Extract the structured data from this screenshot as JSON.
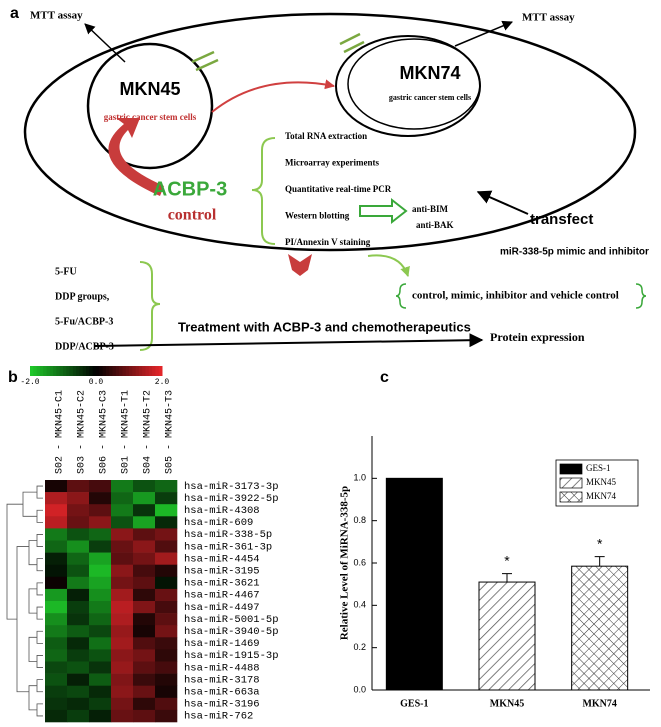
{
  "diagram": {
    "panel_label": "a",
    "mtt_left": "MTT assay",
    "mtt_right": "MTT assay",
    "cell1": "MKN45",
    "cell1_sub": "gastric cancer stem cells",
    "cell2": "MKN74",
    "cell2_sub": "gastric cancer stem cells",
    "agent": "ACBP-3",
    "control": "control",
    "methods": [
      "Total RNA extraction",
      "Microarray experiments",
      "Quantitative real-time PCR",
      "Western blotting",
      "PI/Annexin V staining"
    ],
    "antibodies": [
      "anti-BIM",
      "anti-BAK"
    ],
    "transfect": "transfect",
    "transfect_sub": "miR-338-5p mimic and inhibitor",
    "groups": [
      "5-FU",
      "DDP groups,",
      "5-Fu/ACBP-3",
      "DDP/ACBP-3"
    ],
    "controls": "control, mimic, inhibitor and vehicle control",
    "treatment": "Treatment with ACBP-3 and chemotherapeutics",
    "outcome": "Protein expression"
  },
  "chart_data": [
    {
      "type": "heatmap",
      "panel_label": "b",
      "columns": [
        "S02 - MKN45-C1",
        "S03 - MKN45-C2",
        "S06 - MKN45-C3",
        "S01 - MKN45-T1",
        "S04 - MKN45-T2",
        "S05 - MKN45-T3"
      ],
      "rows": [
        "hsa-miR-3173-3p",
        "hsa-miR-3922-5p",
        "hsa-miR-4308",
        "hsa-miR-609",
        "hsa-miR-338-5p",
        "hsa-miR-361-3p",
        "hsa-miR-4454",
        "hsa-miR-3195",
        "hsa-miR-3621",
        "hsa-miR-4467",
        "hsa-miR-4497",
        "hsa-miR-5001-5p",
        "hsa-miR-3940-5p",
        "hsa-miR-1469",
        "hsa-miR-1915-3p",
        "hsa-miR-4488",
        "hsa-miR-3178",
        "hsa-miR-663a",
        "hsa-miR-3196",
        "hsa-miR-762"
      ],
      "values": [
        [
          0.2,
          0.8,
          0.6,
          -1.2,
          -0.8,
          -1.0
        ],
        [
          1.5,
          1.2,
          0.3,
          -1.0,
          -1.5,
          -0.6
        ],
        [
          1.8,
          1.0,
          0.8,
          -1.2,
          -0.5,
          -1.8
        ],
        [
          1.6,
          0.9,
          1.2,
          -0.8,
          -1.6,
          -0.4
        ],
        [
          -1.2,
          -0.8,
          -1.0,
          1.2,
          0.8,
          1.0
        ],
        [
          -1.0,
          -1.4,
          -0.6,
          0.9,
          1.2,
          0.7
        ],
        [
          -0.3,
          -1.0,
          -1.6,
          0.8,
          1.0,
          1.4
        ],
        [
          -0.2,
          -0.8,
          -1.8,
          1.2,
          0.6,
          0.3
        ],
        [
          0.1,
          -1.2,
          -1.6,
          1.0,
          0.8,
          -0.2
        ],
        [
          -1.5,
          -0.3,
          -1.4,
          1.4,
          0.4,
          0.9
        ],
        [
          -1.8,
          -0.6,
          -1.2,
          1.6,
          1.1,
          0.6
        ],
        [
          -1.4,
          -0.5,
          -1.0,
          1.5,
          0.3,
          0.8
        ],
        [
          -1.2,
          -0.9,
          -0.7,
          1.3,
          0.2,
          1.0
        ],
        [
          -0.9,
          -0.4,
          -1.1,
          1.4,
          0.7,
          0.5
        ],
        [
          -1.0,
          -0.6,
          -0.8,
          1.2,
          1.0,
          0.4
        ],
        [
          -0.7,
          -0.8,
          -0.5,
          1.3,
          0.8,
          0.6
        ],
        [
          -0.8,
          -0.3,
          -0.9,
          1.1,
          0.5,
          0.3
        ],
        [
          -0.6,
          -0.7,
          -0.4,
          1.2,
          0.9,
          0.2
        ],
        [
          -0.5,
          -0.4,
          -0.6,
          1.0,
          0.4,
          0.7
        ],
        [
          -0.4,
          -0.6,
          -0.3,
          0.9,
          0.8,
          0.5
        ]
      ],
      "zlim": [
        -2,
        2
      ],
      "zticks": [
        {
          "value": -2,
          "label": "-2.0"
        },
        {
          "value": 0,
          "label": "0.0"
        },
        {
          "value": 2,
          "label": "2.0"
        }
      ],
      "colors": [
        "#1fcc2a",
        "#000000",
        "#e8262a"
      ]
    },
    {
      "type": "bar",
      "panel_label": "c",
      "categories": [
        "GES-1",
        "MKN45",
        "MKN74"
      ],
      "values": [
        1.0,
        0.51,
        0.585
      ],
      "errors": [
        null,
        0.04,
        0.045
      ],
      "annotations": [
        null,
        "*",
        "*"
      ],
      "fills": [
        "solid",
        "hatch",
        "cross"
      ],
      "ylabel": "Relative Level of MiRNA-338-5p",
      "ylim": [
        0,
        1.2
      ],
      "yticks": [
        {
          "value": 0,
          "label": "0.0"
        },
        0.2,
        0.4,
        0.6,
        0.8,
        {
          "value": 1,
          "label": "1.0"
        }
      ],
      "legend": "upper right"
    }
  ]
}
